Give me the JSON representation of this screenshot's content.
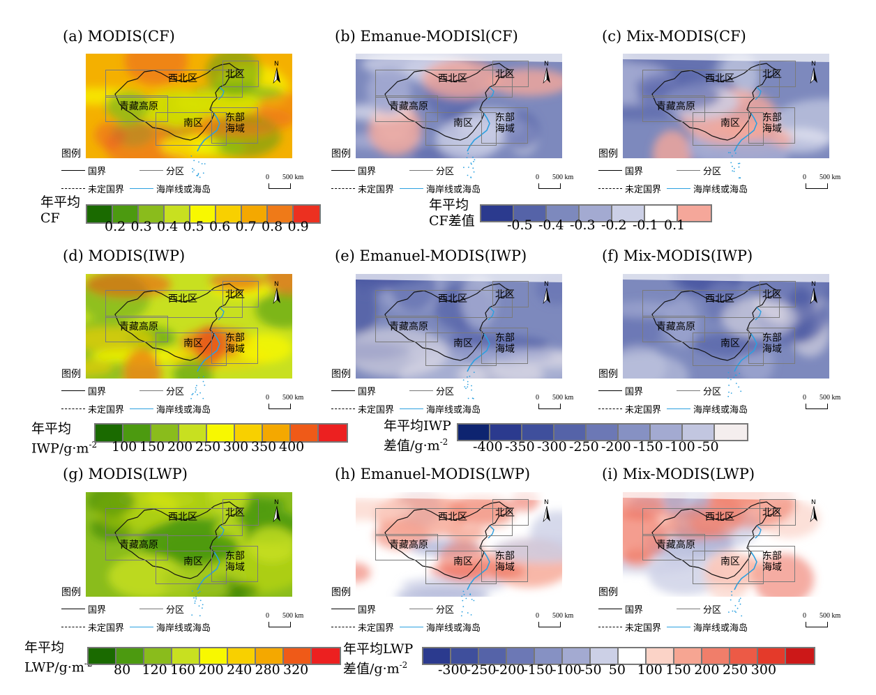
{
  "panels": [
    {
      "id": "a",
      "title": "(a) MODIS(CF)",
      "kind": "abs",
      "scheme": "cf"
    },
    {
      "id": "b",
      "title": "(b) Emanue-MODISl(CF)",
      "kind": "diff",
      "scheme": "cf"
    },
    {
      "id": "c",
      "title": "(c) Mix-MODIS(CF)",
      "kind": "diff",
      "scheme": "cf"
    },
    {
      "id": "d",
      "title": "(d) MODIS(IWP)",
      "kind": "abs",
      "scheme": "iwp"
    },
    {
      "id": "e",
      "title": "(e) Emanuel-MODIS(IWP)",
      "kind": "diff",
      "scheme": "iwp"
    },
    {
      "id": "f",
      "title": "(f) Mix-MODIS(IWP)",
      "kind": "diff",
      "scheme": "iwp"
    },
    {
      "id": "g",
      "title": "(g) MODIS(LWP)",
      "kind": "abs",
      "scheme": "lwp"
    },
    {
      "id": "h",
      "title": "(h) Emanuel-MODIS(LWP)",
      "kind": "diff",
      "scheme": "lwp"
    },
    {
      "id": "i",
      "title": "(i) Mix-MODIS(LWP)",
      "kind": "diff",
      "scheme": "lwp"
    }
  ],
  "regions": {
    "northwest": "西北区",
    "north": "北区",
    "tibet": "青藏高原",
    "south": "南区",
    "east_sea": "东部\n海域"
  },
  "legend": {
    "title": "图例",
    "national_border": "国界",
    "division": "分区",
    "undetermined_border": "未定国界",
    "coastline": "海岸线或海岛",
    "north_letter": "N",
    "scale_zero": "0",
    "scale_dist": "500 km"
  },
  "colorbars": {
    "cf": {
      "title": "年平均\nCF",
      "ticks": [
        "0.2",
        "0.3",
        "0.4",
        "0.5",
        "0.6",
        "0.7",
        "0.8",
        "0.9"
      ],
      "colors": [
        "#1a6a00",
        "#4c9a10",
        "#8abc1c",
        "#c8e020",
        "#f8f800",
        "#f8d000",
        "#f4a800",
        "#ef7a18",
        "#ec3020"
      ]
    },
    "cf_diff": {
      "title": "年平均\nCF差值",
      "ticks": [
        "-0.5",
        "-0.4",
        "-0.3",
        "-0.2",
        "-0.1",
        "0.1"
      ],
      "colors": [
        "#2b3a8e",
        "#5563a8",
        "#7d89bd",
        "#a3aad1",
        "#ccd0e6",
        "#ffffff",
        "#f5a79a"
      ]
    },
    "iwp": {
      "title": "年平均\nIWP/g·m",
      "sup": "-2",
      "ticks": [
        "100",
        "150",
        "200",
        "250",
        "300",
        "350",
        "400"
      ],
      "colors": [
        "#1a6a00",
        "#4c9a10",
        "#8abc1c",
        "#c8e020",
        "#f8f800",
        "#f8d000",
        "#f4a800",
        "#ef5a18",
        "#ec2020"
      ]
    },
    "iwp_diff": {
      "title": "年平均IWP\n差值/g·m",
      "sup": "-2",
      "ticks": [
        "-400",
        "-350",
        "-300",
        "-250",
        "-200",
        "-150",
        "-100",
        "-50"
      ],
      "colors": [
        "#0e2470",
        "#2b3a8e",
        "#3f4f9c",
        "#5563a8",
        "#6c78b5",
        "#8691c3",
        "#a3aad1",
        "#c2c6e0",
        "#f4eeee"
      ]
    },
    "lwp": {
      "title": "年平均\nLWP/g·m",
      "sup": "-2",
      "ticks": [
        "80",
        "120",
        "160",
        "200",
        "240",
        "280",
        "320"
      ],
      "colors": [
        "#1a6a00",
        "#4c9a10",
        "#8abc1c",
        "#c8e020",
        "#f8f800",
        "#f8d000",
        "#f4a800",
        "#ef5a18",
        "#ec2020"
      ]
    },
    "lwp_diff": {
      "title": "年平均LWP\n差值/g·m",
      "sup": "-2",
      "ticks": [
        "-300",
        "-250",
        "-200",
        "-150",
        "-100",
        "-50",
        "50",
        "100",
        "150",
        "200",
        "250",
        "300"
      ],
      "colors": [
        "#2b3a8e",
        "#3f4f9c",
        "#5563a8",
        "#6c78b5",
        "#8691c3",
        "#a3aad1",
        "#ccd0e6",
        "#ffffff",
        "#fbd3c7",
        "#f6a592",
        "#f07e6a",
        "#ec5a46",
        "#e43a2a",
        "#cc1818"
      ]
    }
  }
}
